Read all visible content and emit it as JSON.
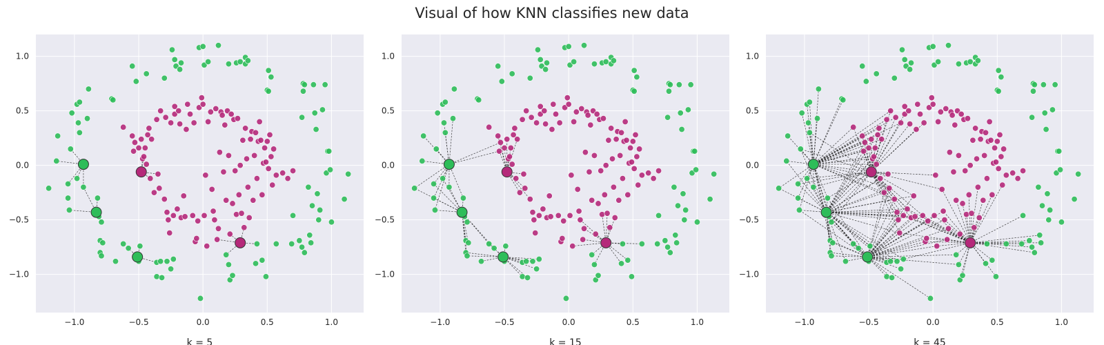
{
  "title": "Visual of how KNN classifies new data",
  "chart_data": [
    {
      "type": "scatter",
      "xlabel": "k = 5",
      "k": 5,
      "xlim": [
        -1.3,
        1.25
      ],
      "ylim": [
        -1.35,
        1.2
      ],
      "xticks": [
        -1.0,
        -0.5,
        0.0,
        0.5,
        1.0
      ],
      "yticks": [
        -1.0,
        -0.5,
        0.0,
        0.5,
        1.0
      ],
      "xtick_labels": [
        "−1.0",
        "−0.5",
        "0.0",
        "0.5",
        "1.0"
      ],
      "ytick_labels": [
        "−1.0",
        "−0.5",
        "0.0",
        "0.5",
        "1.0"
      ],
      "grid": true
    },
    {
      "type": "scatter",
      "xlabel": "k = 15",
      "k": 15,
      "xlim": [
        -1.3,
        1.25
      ],
      "ylim": [
        -1.35,
        1.2
      ],
      "xticks": [
        -1.0,
        -0.5,
        0.0,
        0.5,
        1.0
      ],
      "yticks": [
        -1.0,
        -0.5,
        0.0,
        0.5,
        1.0
      ],
      "xtick_labels": [
        "−1.0",
        "−0.5",
        "0.0",
        "0.5",
        "1.0"
      ],
      "ytick_labels": [
        "−1.0",
        "−0.5",
        "0.0",
        "0.5",
        "1.0"
      ],
      "grid": true
    },
    {
      "type": "scatter",
      "xlabel": "k = 45",
      "k": 45,
      "xlim": [
        -1.3,
        1.25
      ],
      "ylim": [
        -1.35,
        1.2
      ],
      "xticks": [
        -1.0,
        -0.5,
        0.0,
        0.5,
        1.0
      ],
      "yticks": [
        -1.0,
        -0.5,
        0.0,
        0.5,
        1.0
      ],
      "xtick_labels": [
        "−1.0",
        "−0.5",
        "0.0",
        "0.5",
        "1.0"
      ],
      "ytick_labels": [
        "−1.0",
        "−0.5",
        "0.0",
        "0.5",
        "1.0"
      ],
      "grid": true
    }
  ],
  "colors": {
    "green": "#2ebd59",
    "magenta": "#b5297a",
    "axes_bg": "#eaeaf2",
    "grid": "#ffffff",
    "edge": "#222222"
  },
  "classes": [
    {
      "color_key": "green",
      "points": [
        [
          -1.2,
          -0.21
        ],
        [
          -1.13,
          0.27
        ],
        [
          -1.14,
          0.04
        ],
        [
          -1.05,
          -0.17
        ],
        [
          -1.05,
          -0.3
        ],
        [
          -1.04,
          -0.41
        ],
        [
          -1.03,
          0.15
        ],
        [
          -1.02,
          0.48
        ],
        [
          -0.98,
          0.56
        ],
        [
          -0.96,
          0.58
        ],
        [
          -0.97,
          0.39
        ],
        [
          -0.96,
          0.3
        ],
        [
          -0.98,
          -0.12
        ],
        [
          -0.93,
          -0.2
        ],
        [
          -0.9,
          0.43
        ],
        [
          -0.89,
          0.7
        ],
        [
          -0.82,
          -0.3
        ],
        [
          -0.81,
          -0.47
        ],
        [
          -0.79,
          -0.52
        ],
        [
          -0.8,
          -0.69
        ],
        [
          -0.8,
          -0.8
        ],
        [
          -0.79,
          -0.83
        ],
        [
          -0.78,
          -0.71
        ],
        [
          -0.71,
          0.61
        ],
        [
          -0.7,
          0.6
        ],
        [
          -0.68,
          -0.88
        ],
        [
          -0.62,
          -0.72
        ],
        [
          -0.58,
          -0.76
        ],
        [
          -0.55,
          0.91
        ],
        [
          -0.52,
          0.77
        ],
        [
          -0.51,
          -0.85
        ],
        [
          -0.5,
          -0.88
        ],
        [
          -0.49,
          -0.74
        ],
        [
          -0.44,
          0.84
        ],
        [
          -0.36,
          -0.89
        ],
        [
          -0.36,
          -1.02
        ],
        [
          -0.33,
          -0.88
        ],
        [
          -0.32,
          -1.03
        ],
        [
          -0.3,
          0.8
        ],
        [
          -0.28,
          -0.88
        ],
        [
          -0.23,
          -0.86
        ],
        [
          -0.25,
          -0.95
        ],
        [
          -0.24,
          1.06
        ],
        [
          -0.22,
          0.97
        ],
        [
          -0.21,
          0.91
        ],
        [
          -0.18,
          0.88
        ],
        [
          -0.17,
          0.94
        ],
        [
          -0.03,
          1.08
        ],
        [
          0.0,
          1.09
        ],
        [
          0.01,
          0.92
        ],
        [
          0.04,
          0.95
        ],
        [
          -0.02,
          -1.22
        ],
        [
          0.12,
          1.1
        ],
        [
          0.18,
          -0.82
        ],
        [
          0.2,
          -0.91
        ],
        [
          0.21,
          -1.05
        ],
        [
          0.2,
          0.93
        ],
        [
          0.23,
          -1.01
        ],
        [
          0.26,
          0.94
        ],
        [
          0.29,
          0.95
        ],
        [
          0.33,
          0.93
        ],
        [
          0.33,
          0.99
        ],
        [
          0.35,
          0.96
        ],
        [
          0.41,
          -0.9
        ],
        [
          0.42,
          -0.72
        ],
        [
          0.46,
          -0.87
        ],
        [
          0.49,
          -1.02
        ],
        [
          0.5,
          0.69
        ],
        [
          0.51,
          0.68
        ],
        [
          0.51,
          0.87
        ],
        [
          0.53,
          0.81
        ],
        [
          0.57,
          -0.72
        ],
        [
          0.69,
          -0.72
        ],
        [
          0.7,
          -0.46
        ],
        [
          0.75,
          -0.69
        ],
        [
          0.77,
          -0.75
        ],
        [
          0.77,
          0.44
        ],
        [
          0.78,
          0.68
        ],
        [
          0.78,
          0.75
        ],
        [
          0.79,
          0.74
        ],
        [
          0.79,
          -0.8
        ],
        [
          0.82,
          -0.2
        ],
        [
          0.83,
          -0.64
        ],
        [
          0.84,
          -0.71
        ],
        [
          0.85,
          -0.37
        ],
        [
          0.86,
          0.74
        ],
        [
          0.87,
          0.48
        ],
        [
          0.88,
          0.33
        ],
        [
          0.89,
          -0.26
        ],
        [
          0.9,
          -0.5
        ],
        [
          0.91,
          -0.41
        ],
        [
          0.93,
          0.51
        ],
        [
          0.95,
          0.74
        ],
        [
          0.96,
          -0.07
        ],
        [
          0.97,
          0.13
        ],
        [
          0.98,
          0.13
        ],
        [
          0.99,
          -0.04
        ],
        [
          1.0,
          -0.52
        ],
        [
          1.1,
          -0.31
        ],
        [
          1.13,
          -0.08
        ]
      ]
    },
    {
      "color_key": "magenta",
      "points": [
        [
          -0.62,
          0.35
        ],
        [
          -0.55,
          0.27
        ],
        [
          -0.54,
          0.13
        ],
        [
          -0.53,
          0.21
        ],
        [
          -0.5,
          0.16
        ],
        [
          -0.48,
          0.24
        ],
        [
          -0.47,
          0.06
        ],
        [
          -0.46,
          0.08
        ],
        [
          -0.45,
          0.16
        ],
        [
          -0.44,
          0.01
        ],
        [
          -0.43,
          0.28
        ],
        [
          -0.42,
          0.34
        ],
        [
          -0.41,
          -0.12
        ],
        [
          -0.4,
          0.24
        ],
        [
          -0.38,
          -0.25
        ],
        [
          -0.36,
          0.42
        ],
        [
          -0.35,
          -0.08
        ],
        [
          -0.34,
          -0.21
        ],
        [
          -0.33,
          0.5
        ],
        [
          -0.3,
          -0.31
        ],
        [
          -0.29,
          0.44
        ],
        [
          -0.28,
          -0.43
        ],
        [
          -0.27,
          -0.5
        ],
        [
          -0.26,
          -0.62
        ],
        [
          -0.25,
          0.39
        ],
        [
          -0.23,
          -0.46
        ],
        [
          -0.22,
          0.47
        ],
        [
          -0.22,
          0.54
        ],
        [
          -0.2,
          -0.4
        ],
        [
          -0.19,
          0.5
        ],
        [
          -0.18,
          0.38
        ],
        [
          -0.17,
          -0.48
        ],
        [
          -0.15,
          -0.28
        ],
        [
          -0.14,
          -0.47
        ],
        [
          -0.13,
          0.33
        ],
        [
          -0.12,
          0.56
        ],
        [
          -0.1,
          0.47
        ],
        [
          -0.08,
          -0.46
        ],
        [
          -0.07,
          0.39
        ],
        [
          -0.06,
          -0.7
        ],
        [
          -0.05,
          -0.67
        ],
        [
          -0.04,
          -0.51
        ],
        [
          -0.03,
          0.53
        ],
        [
          -0.01,
          0.62
        ],
        [
          0.0,
          0.56
        ],
        [
          0.01,
          -0.46
        ],
        [
          0.02,
          -0.09
        ],
        [
          0.03,
          -0.74
        ],
        [
          0.04,
          0.4
        ],
        [
          0.06,
          0.49
        ],
        [
          0.07,
          -0.22
        ],
        [
          0.08,
          -0.42
        ],
        [
          0.09,
          -0.5
        ],
        [
          0.1,
          0.52
        ],
        [
          0.11,
          -0.68
        ],
        [
          0.12,
          -0.58
        ],
        [
          0.13,
          0.12
        ],
        [
          0.14,
          0.49
        ],
        [
          0.15,
          0.46
        ],
        [
          0.16,
          -0.06
        ],
        [
          0.17,
          0.37
        ],
        [
          0.18,
          -0.32
        ],
        [
          0.19,
          0.5
        ],
        [
          0.2,
          0.09
        ],
        [
          0.21,
          -0.63
        ],
        [
          0.22,
          0.47
        ],
        [
          0.23,
          -0.35
        ],
        [
          0.24,
          0.42
        ],
        [
          0.25,
          -0.05
        ],
        [
          0.26,
          -0.45
        ],
        [
          0.27,
          0.43
        ],
        [
          0.28,
          -0.27
        ],
        [
          0.29,
          0.0
        ],
        [
          0.3,
          -0.44
        ],
        [
          0.31,
          0.23
        ],
        [
          0.32,
          -0.57
        ],
        [
          0.33,
          0.34
        ],
        [
          0.34,
          0.06
        ],
        [
          0.35,
          -0.2
        ],
        [
          0.36,
          -0.48
        ],
        [
          0.37,
          0.24
        ],
        [
          0.38,
          0.31
        ],
        [
          0.39,
          -0.32
        ],
        [
          0.4,
          0.09
        ],
        [
          0.41,
          0.3
        ],
        [
          0.42,
          -0.12
        ],
        [
          0.43,
          0.22
        ],
        [
          0.44,
          0.4
        ],
        [
          0.45,
          0.23
        ],
        [
          0.46,
          -0.27
        ],
        [
          0.47,
          0.02
        ],
        [
          0.48,
          0.16
        ],
        [
          0.49,
          0.03
        ],
        [
          0.5,
          0.22
        ],
        [
          0.51,
          -0.03
        ],
        [
          0.52,
          0.28
        ],
        [
          0.53,
          0.08
        ],
        [
          0.54,
          -0.18
        ],
        [
          0.55,
          0.15
        ],
        [
          0.57,
          -0.09
        ],
        [
          0.62,
          -0.07
        ],
        [
          0.66,
          -0.12
        ],
        [
          0.7,
          -0.05
        ]
      ]
    }
  ],
  "query_points": [
    {
      "x": -0.93,
      "y": 0.01,
      "color_key": "green"
    },
    {
      "x": -0.83,
      "y": -0.43,
      "color_key": "green"
    },
    {
      "x": -0.51,
      "y": -0.84,
      "color_key": "green"
    },
    {
      "x": -0.48,
      "y": -0.06,
      "color_key": "magenta"
    },
    {
      "x": 0.29,
      "y": -0.71,
      "color_key": "magenta"
    }
  ]
}
